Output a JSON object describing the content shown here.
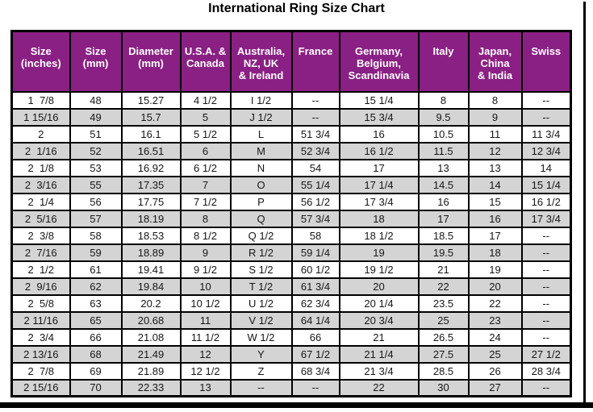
{
  "title": "International Ring Size Chart",
  "colors": {
    "header_bg": "#8A2083",
    "header_text": "#FFFFFF",
    "row_alt_bg": "#D4D4D4",
    "border": "#000000"
  },
  "table": {
    "header_display": [
      "Size\n(inches)",
      "Size\n(mm)",
      "Diameter\n(mm)",
      "U.S.A. &\nCanada",
      "Australia,\nNZ, UK\n& Ireland",
      "France",
      "Germany,\nBelgium,\nScandinavia",
      "Italy",
      "Japan,\nChina\n& India",
      "Swiss"
    ]
  },
  "chart_data": {
    "type": "table",
    "title": "International Ring Size Chart",
    "columns": [
      "Size (inches)",
      "Size (mm)",
      "Diameter (mm)",
      "U.S.A. & Canada",
      "Australia, NZ, UK & Ireland",
      "France",
      "Germany, Belgium, Scandinavia",
      "Italy",
      "Japan, China & India",
      "Swiss"
    ],
    "rows": [
      [
        "1  7/8",
        "48",
        "15.27",
        "4 1/2",
        "I 1/2",
        "--",
        "15 1/4",
        "8",
        "8",
        "--"
      ],
      [
        "1 15/16",
        "49",
        "15.7",
        "5",
        "J 1/2",
        "--",
        "15 3/4",
        "9.5",
        "9",
        "--"
      ],
      [
        "2",
        "51",
        "16.1",
        "5 1/2",
        "L",
        "51 3/4",
        "16",
        "10.5",
        "11",
        "11 3/4"
      ],
      [
        "2  1/16",
        "52",
        "16.51",
        "6",
        "M",
        "52 3/4",
        "16 1/2",
        "11.5",
        "12",
        "12 3/4"
      ],
      [
        "2  1/8",
        "53",
        "16.92",
        "6 1/2",
        "N",
        "54",
        "17",
        "13",
        "13",
        "14"
      ],
      [
        "2  3/16",
        "55",
        "17.35",
        "7",
        "O",
        "55 1/4",
        "17 1/4",
        "14.5",
        "14",
        "15 1/4"
      ],
      [
        "2  1/4",
        "56",
        "17.75",
        "7 1/2",
        "P",
        "56 1/2",
        "17 3/4",
        "16",
        "15",
        "16 1/2"
      ],
      [
        "2  5/16",
        "57",
        "18.19",
        "8",
        "Q",
        "57 3/4",
        "18",
        "17",
        "16",
        "17 3/4"
      ],
      [
        "2  3/8",
        "58",
        "18.53",
        "8 1/2",
        "Q 1/2",
        "58",
        "18 1/2",
        "18.5",
        "17",
        "--"
      ],
      [
        "2  7/16",
        "59",
        "18.89",
        "9",
        "R 1/2",
        "59 1/4",
        "19",
        "19.5",
        "18",
        "--"
      ],
      [
        "2  1/2",
        "61",
        "19.41",
        "9 1/2",
        "S 1/2",
        "60 1/2",
        "19 1/2",
        "21",
        "19",
        "--"
      ],
      [
        "2  9/16",
        "62",
        "19.84",
        "10",
        "T 1/2",
        "61 3/4",
        "20",
        "22",
        "20",
        "--"
      ],
      [
        "2  5/8",
        "63",
        "20.2",
        "10 1/2",
        "U 1/2",
        "62 3/4",
        "20 1/4",
        "23.5",
        "22",
        "--"
      ],
      [
        "2 11/16",
        "65",
        "20.68",
        "11",
        "V 1/2",
        "64 1/4",
        "20 3/4",
        "25",
        "23",
        "--"
      ],
      [
        "2  3/4",
        "66",
        "21.08",
        "11 1/2",
        "W 1/2",
        "66",
        "21",
        "26.5",
        "24",
        "--"
      ],
      [
        "2 13/16",
        "68",
        "21.49",
        "12",
        "Y",
        "67 1/2",
        "21 1/4",
        "27.5",
        "25",
        "27 1/2"
      ],
      [
        "2  7/8",
        "69",
        "21.89",
        "12 1/2",
        "Z",
        "68 3/4",
        "21 3/4",
        "28.5",
        "26",
        "28 3/4"
      ],
      [
        "2 15/16",
        "70",
        "22.33",
        "13",
        "--",
        "--",
        "22",
        "30",
        "27",
        "--"
      ]
    ]
  }
}
